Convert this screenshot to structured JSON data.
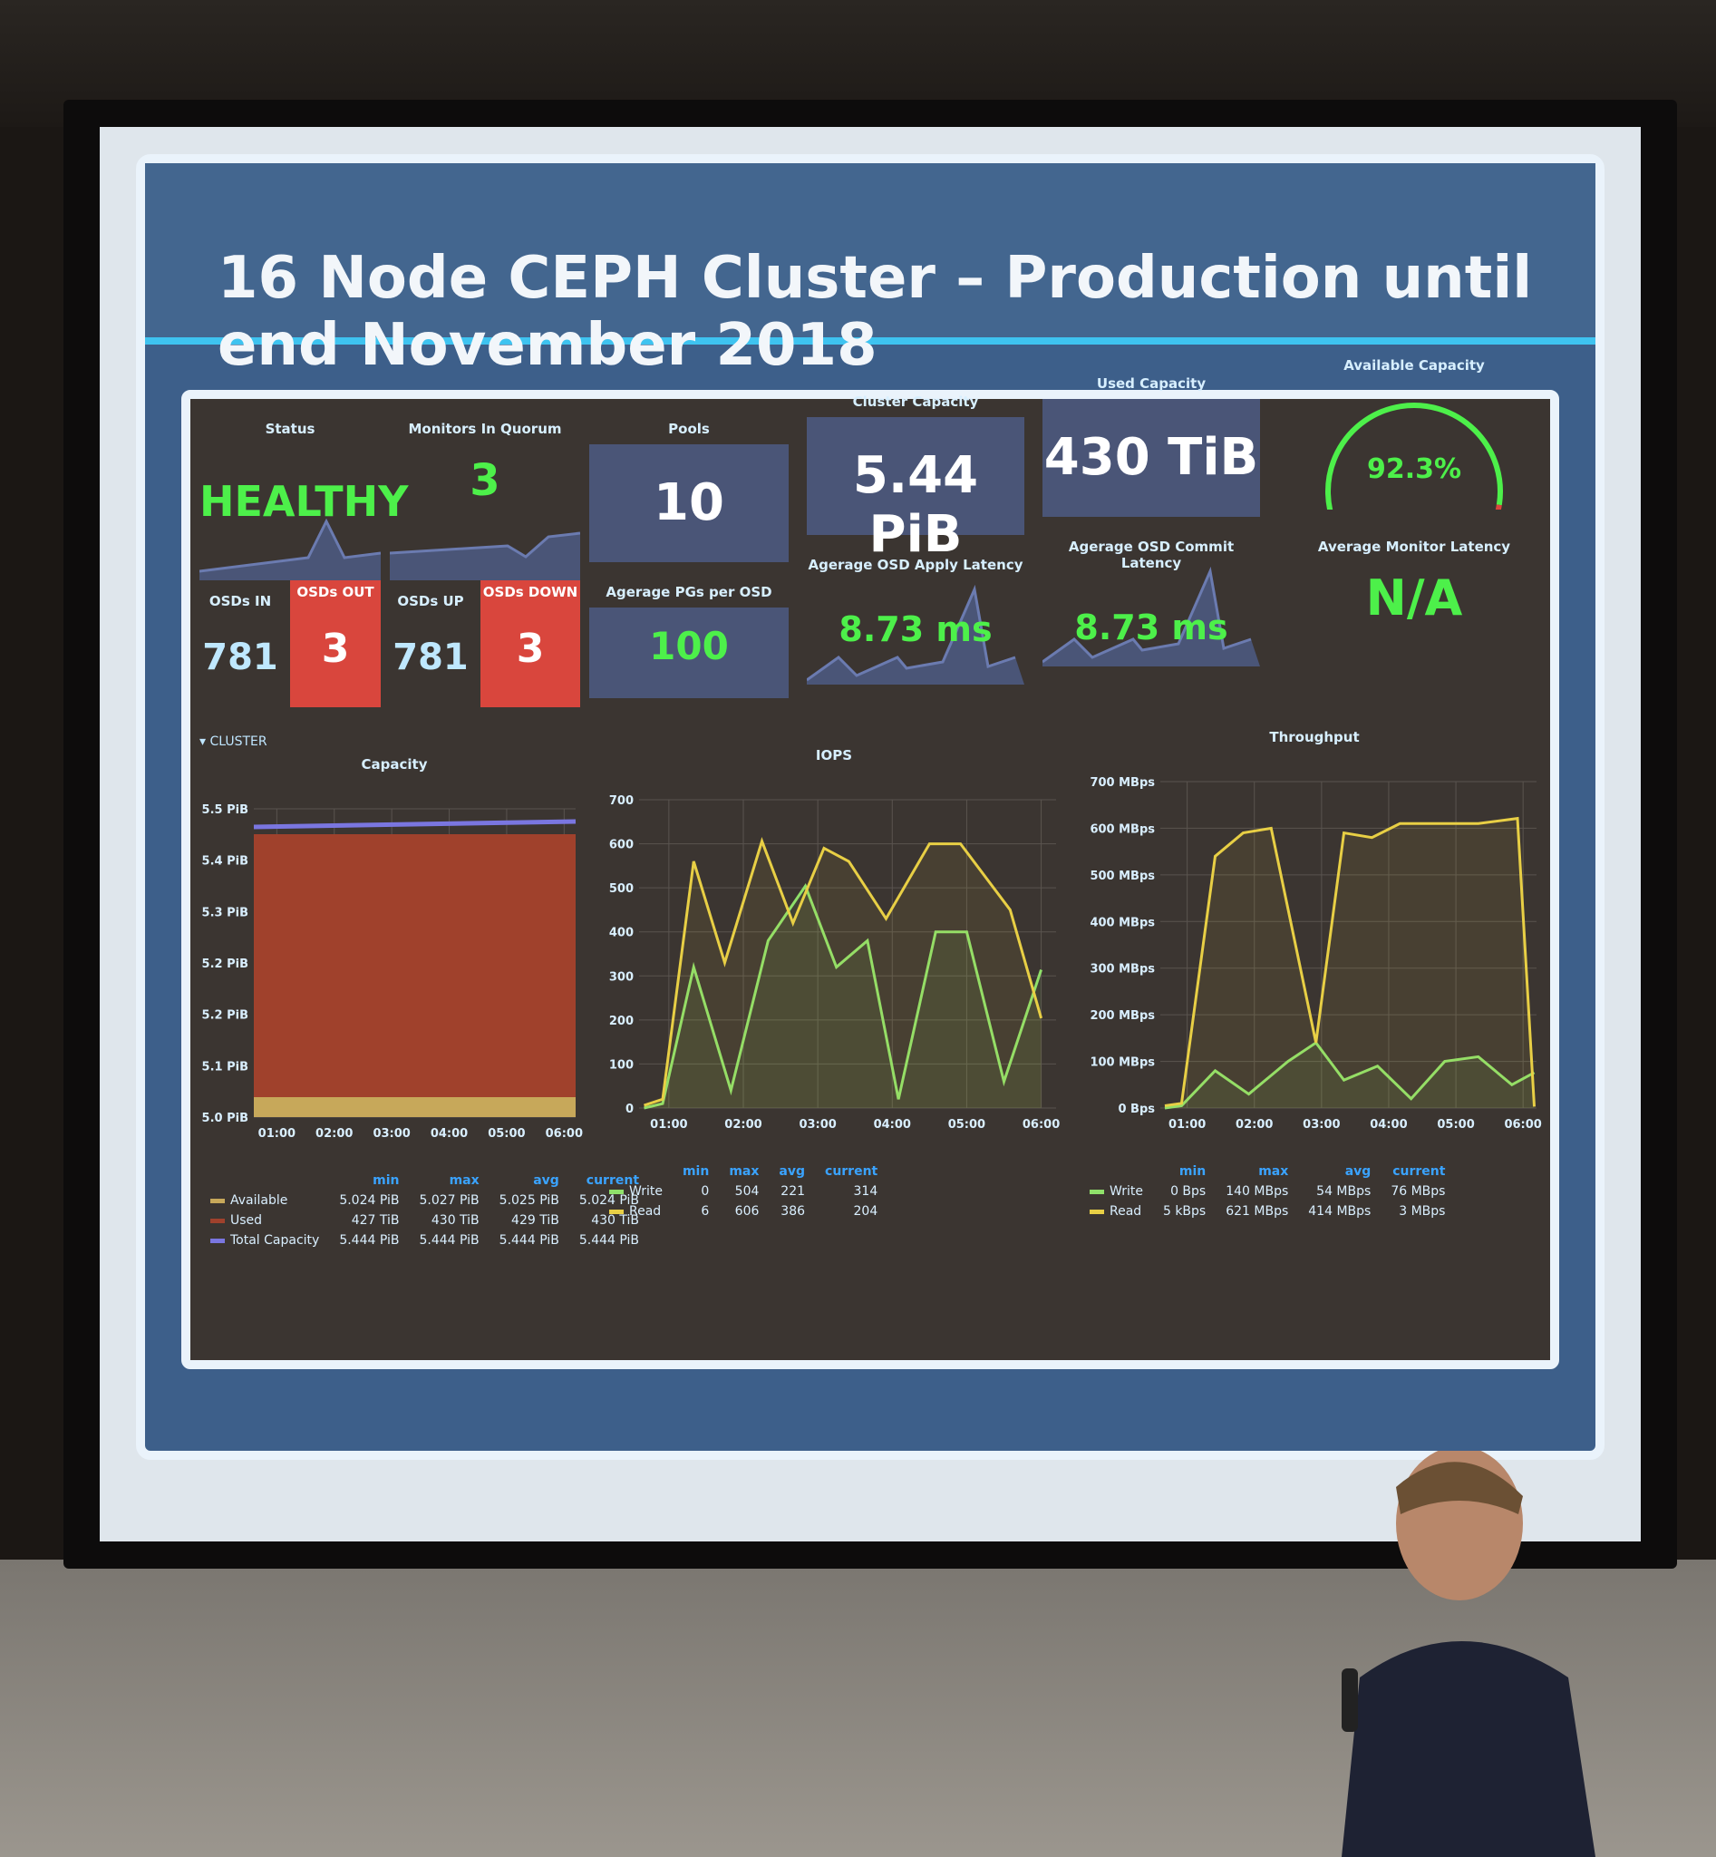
{
  "slide": {
    "title": "16 Node CEPH Cluster – Production until end November 2018"
  },
  "colors": {
    "green": "#4df04a",
    "red": "#d9463d",
    "blue_panel": "#4a5577",
    "read": "#e8cf45",
    "write": "#8fe06a",
    "used": "#a0412c",
    "available": "#c7a85a",
    "total": "#7a76e0"
  },
  "stats": {
    "status": {
      "label": "Status",
      "value": "HEALTHY"
    },
    "monitors": {
      "label": "Monitors In Quorum",
      "value": "3"
    },
    "pools": {
      "label": "Pools",
      "value": "10"
    },
    "cluster_capacity": {
      "label": "Cluster Capacity",
      "value": "5.44 PiB"
    },
    "used_capacity": {
      "label": "Used Capacity",
      "value": "430 TiB"
    },
    "available_capacity": {
      "label": "Available Capacity",
      "value": "92.3%",
      "fraction": 0.923
    },
    "osds_in": {
      "label": "OSDs IN",
      "value": "781"
    },
    "osds_out": {
      "label": "OSDs OUT",
      "value": "3"
    },
    "osds_up": {
      "label": "OSDs UP",
      "value": "781"
    },
    "osds_down": {
      "label": "OSDs DOWN",
      "value": "3"
    },
    "avg_pgs": {
      "label": "Agerage PGs per OSD",
      "value": "100"
    },
    "apply_latency": {
      "label": "Agerage OSD Apply Latency",
      "value": "8.73 ms"
    },
    "commit_latency": {
      "label": "Agerage OSD Commit Latency",
      "value": "8.73 ms"
    },
    "monitor_latency": {
      "label": "Average Monitor Latency",
      "value": "N/A"
    }
  },
  "row_label": "CLUSTER",
  "legend_headers": [
    "min",
    "max",
    "avg",
    "current"
  ],
  "chart_data": [
    {
      "type": "area",
      "title": "Capacity",
      "x_ticks": [
        "01:00",
        "02:00",
        "03:00",
        "04:00",
        "05:00",
        "06:00"
      ],
      "y_ticks": [
        "5.5 PiB",
        "5.4 PiB",
        "5.3 PiB",
        "5.2 PiB",
        "5.2 PiB",
        "5.1 PiB",
        "5.0 PiB"
      ],
      "series": [
        {
          "name": "Available",
          "color": "#c7a85a",
          "min": "5.024 PiB",
          "max": "5.027 PiB",
          "avg": "5.025 PiB",
          "current": "5.024 PiB"
        },
        {
          "name": "Used",
          "color": "#a0412c",
          "min": "427 TiB",
          "max": "430 TiB",
          "avg": "429 TiB",
          "current": "430 TiB"
        },
        {
          "name": "Total Capacity",
          "color": "#7a76e0",
          "min": "5.444 PiB",
          "max": "5.444 PiB",
          "avg": "5.444 PiB",
          "current": "5.444 PiB"
        }
      ]
    },
    {
      "type": "line",
      "title": "IOPS",
      "ylim": [
        0,
        700
      ],
      "x_ticks": [
        "01:00",
        "02:00",
        "03:00",
        "04:00",
        "05:00",
        "06:00"
      ],
      "y_ticks": [
        "700",
        "600",
        "500",
        "400",
        "300",
        "200",
        "100",
        "0"
      ],
      "series": [
        {
          "name": "Write",
          "color": "#8fe06a",
          "min": "0",
          "max": "504",
          "avg": "221",
          "current": "314",
          "points": [
            [
              "00:40",
              0
            ],
            [
              "00:55",
              10
            ],
            [
              "01:20",
              320
            ],
            [
              "01:50",
              40
            ],
            [
              "02:20",
              380
            ],
            [
              "02:50",
              504
            ],
            [
              "03:15",
              320
            ],
            [
              "03:40",
              380
            ],
            [
              "04:05",
              20
            ],
            [
              "04:35",
              400
            ],
            [
              "05:00",
              400
            ],
            [
              "05:30",
              60
            ],
            [
              "06:00",
              314
            ]
          ]
        },
        {
          "name": "Read",
          "color": "#e8cf45",
          "min": "6",
          "max": "606",
          "avg": "386",
          "current": "204",
          "points": [
            [
              "00:40",
              6
            ],
            [
              "00:55",
              20
            ],
            [
              "01:20",
              560
            ],
            [
              "01:45",
              330
            ],
            [
              "02:15",
              606
            ],
            [
              "02:40",
              420
            ],
            [
              "03:05",
              590
            ],
            [
              "03:25",
              560
            ],
            [
              "03:55",
              430
            ],
            [
              "04:30",
              600
            ],
            [
              "04:55",
              600
            ],
            [
              "05:35",
              450
            ],
            [
              "06:00",
              204
            ]
          ]
        }
      ]
    },
    {
      "type": "line",
      "title": "Throughput",
      "ylim": [
        0,
        700
      ],
      "x_ticks": [
        "01:00",
        "02:00",
        "03:00",
        "04:00",
        "05:00",
        "06:00"
      ],
      "y_ticks": [
        "700 MBps",
        "600 MBps",
        "500 MBps",
        "400 MBps",
        "300 MBps",
        "200 MBps",
        "100 MBps",
        "0 Bps"
      ],
      "series": [
        {
          "name": "Write",
          "color": "#8fe06a",
          "min": "0 Bps",
          "max": "140 MBps",
          "avg": "54 MBps",
          "current": "76 MBps",
          "points": [
            [
              "00:40",
              0
            ],
            [
              "00:55",
              5
            ],
            [
              "01:25",
              80
            ],
            [
              "01:55",
              30
            ],
            [
              "02:30",
              100
            ],
            [
              "02:55",
              140
            ],
            [
              "03:20",
              60
            ],
            [
              "03:50",
              90
            ],
            [
              "04:20",
              20
            ],
            [
              "04:50",
              100
            ],
            [
              "05:20",
              110
            ],
            [
              "05:50",
              50
            ],
            [
              "06:10",
              76
            ]
          ]
        },
        {
          "name": "Read",
          "color": "#e8cf45",
          "min": "5 kBps",
          "max": "621 MBps",
          "avg": "414 MBps",
          "current": "3 MBps",
          "points": [
            [
              "00:40",
              5
            ],
            [
              "00:55",
              10
            ],
            [
              "01:25",
              540
            ],
            [
              "01:50",
              590
            ],
            [
              "02:15",
              600
            ],
            [
              "02:55",
              140
            ],
            [
              "03:20",
              590
            ],
            [
              "03:45",
              580
            ],
            [
              "04:10",
              610
            ],
            [
              "04:45",
              610
            ],
            [
              "05:20",
              610
            ],
            [
              "05:55",
              621
            ],
            [
              "06:10",
              3
            ]
          ]
        }
      ]
    }
  ]
}
